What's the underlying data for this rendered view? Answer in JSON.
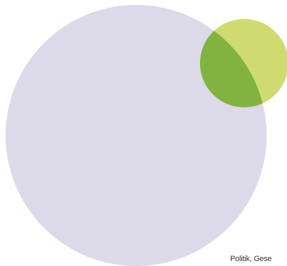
{
  "diagram": {
    "caption": "Politik, Gese",
    "circles": [
      {
        "id": "large-circle",
        "color": "#dcd9e9"
      },
      {
        "id": "small-circle",
        "color": "#cfdb71"
      },
      {
        "id": "overlap",
        "color": "#82b33f"
      }
    ]
  }
}
